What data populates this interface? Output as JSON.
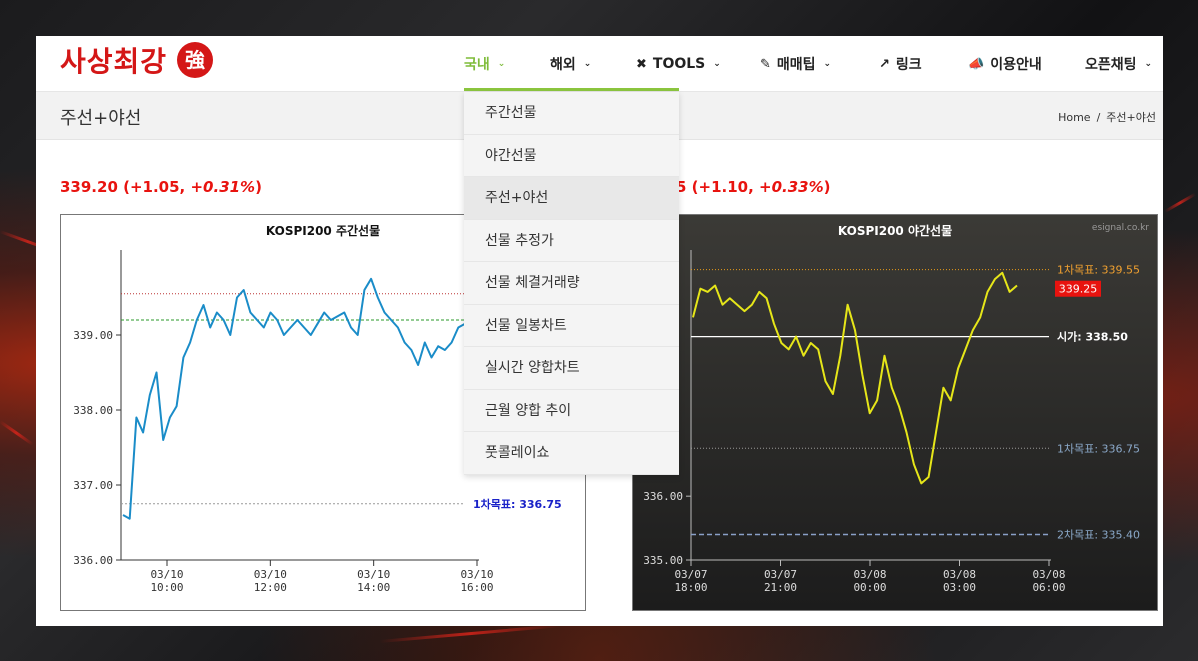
{
  "header": {
    "logo_text": "사상최강",
    "logo_seal": "強",
    "nav": [
      {
        "label": "국내",
        "caret": "⌄",
        "active": true
      },
      {
        "label": "해외",
        "caret": "⌄"
      },
      {
        "label": "TOOLS",
        "icon": "tools-icon",
        "caret": "⌄"
      },
      {
        "label": "매매팁",
        "icon": "edit-icon",
        "caret": "⌄"
      },
      {
        "label": "링크",
        "icon": "external-link-icon"
      },
      {
        "label": "이용안내",
        "icon": "megaphone-icon"
      },
      {
        "label": "오픈채팅",
        "caret": "⌄"
      }
    ]
  },
  "subheader": {
    "title": "주선+야선",
    "breadcrumb": [
      "Home",
      "/",
      "주선+야선"
    ]
  },
  "dropdown": {
    "items": [
      "주간선물",
      "야간선물",
      "주선+야선",
      "선물 추정가",
      "선물 체결거래량",
      "선물 일봉차트",
      "실시간 양합차트",
      "근월 양합 추이",
      "풋콜레이쇼"
    ],
    "active_index": 2
  },
  "price_day": {
    "value": "339.20",
    "change": "(+1.05, ",
    "pct": "+0.31%",
    "close": ")"
  },
  "price_night": {
    "value": "5",
    "change": " (+1.10, ",
    "pct": "+0.33%",
    "close": ")"
  },
  "colors": {
    "red": "#e8130f",
    "accent_green": "#8cc63f",
    "day_line": "#1a8cc8",
    "night_line": "#e6e619"
  },
  "chart_data": [
    {
      "type": "line",
      "title": "KOSPI200 주간선물",
      "ylim": [
        336.0,
        340.0
      ],
      "yticks": [
        "336.00",
        "337.00",
        "338.00",
        "339.00"
      ],
      "xticks": [
        {
          "date": "03/10",
          "time": "10:00"
        },
        {
          "date": "03/10",
          "time": "12:00"
        },
        {
          "date": "03/10",
          "time": "14:00"
        },
        {
          "date": "03/10",
          "time": "16:00"
        }
      ],
      "reference_lines": [
        {
          "label": "1차목표: 336.75",
          "value": 336.75
        },
        {
          "value": 339.2
        },
        {
          "value": 339.55
        }
      ],
      "series": [
        {
          "values": [
            336.6,
            336.55,
            337.9,
            337.7,
            338.2,
            338.5,
            337.6,
            337.9,
            338.05,
            338.7,
            338.9,
            339.2,
            339.4,
            339.1,
            339.3,
            339.2,
            339.0,
            339.5,
            339.6,
            339.3,
            339.2,
            339.1,
            339.3,
            339.2,
            339.0,
            339.1,
            339.2,
            339.1,
            339.0,
            339.15,
            339.3,
            339.2,
            339.25,
            339.3,
            339.1,
            339.0,
            339.6,
            339.75,
            339.5,
            339.3,
            339.2,
            339.1,
            338.9,
            338.8,
            338.6,
            338.9,
            338.7,
            338.85,
            338.8,
            338.9,
            339.1,
            339.15
          ]
        }
      ]
    },
    {
      "type": "line",
      "title": "KOSPI200 야간선물",
      "watermark": "esignal.co.kr",
      "ylim": [
        335.0,
        339.7
      ],
      "yticks": [
        "335.00",
        "336.00"
      ],
      "xticks": [
        {
          "date": "03/07",
          "time": "18:00"
        },
        {
          "date": "03/07",
          "time": "21:00"
        },
        {
          "date": "03/08",
          "time": "00:00"
        },
        {
          "date": "03/08",
          "time": "03:00"
        },
        {
          "date": "03/08",
          "time": "06:00"
        }
      ],
      "reference_lines": [
        {
          "label": "1차목표: 339.55",
          "value": 339.55
        },
        {
          "label": "시가: 338.50",
          "value": 338.5
        },
        {
          "label": "1차목표: 336.75",
          "value": 336.75
        },
        {
          "label": "2차목표: 335.40",
          "value": 335.4
        }
      ],
      "current_label": "339.25",
      "series": [
        {
          "values": [
            338.8,
            339.25,
            339.2,
            339.3,
            339.0,
            339.1,
            339.0,
            338.9,
            339.0,
            339.2,
            339.1,
            338.7,
            338.4,
            338.3,
            338.5,
            338.2,
            338.4,
            338.3,
            337.8,
            337.6,
            338.2,
            339.0,
            338.6,
            337.9,
            337.3,
            337.5,
            338.2,
            337.7,
            337.4,
            337.0,
            336.5,
            336.2,
            336.3,
            337.0,
            337.7,
            337.5,
            338.0,
            338.3,
            338.6,
            338.8,
            339.2,
            339.4,
            339.5,
            339.2,
            339.3
          ]
        }
      ]
    }
  ]
}
